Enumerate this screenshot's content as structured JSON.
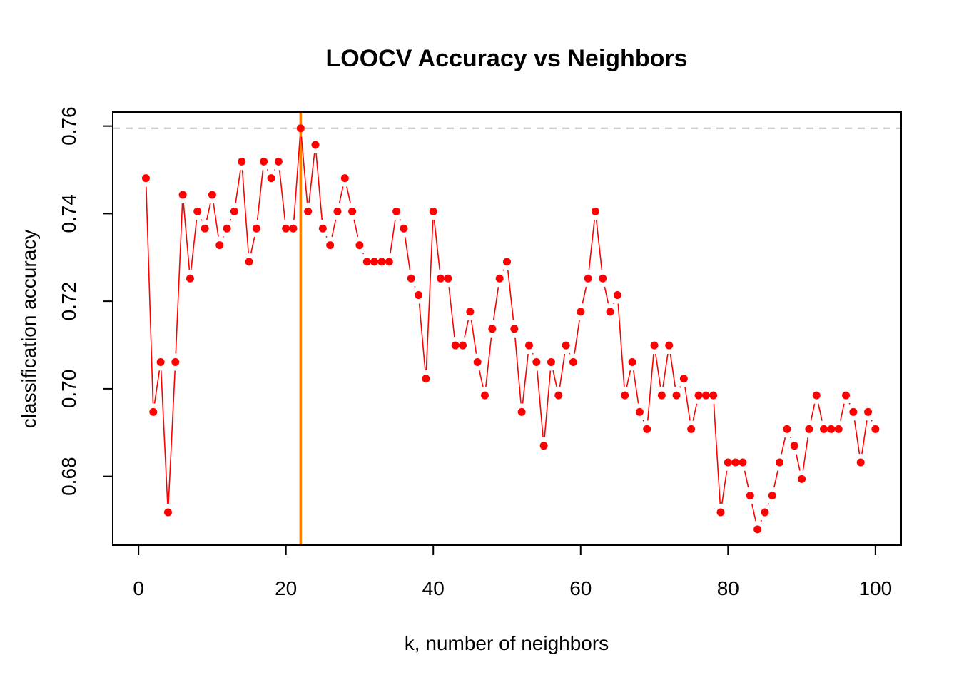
{
  "chart_data": {
    "type": "line",
    "title": "LOOCV Accuracy vs Neighbors",
    "xlabel": "k, number of neighbors",
    "ylabel": "classification accuracy",
    "xlim": [
      -3.5,
      103.5
    ],
    "ylim": [
      0.6643,
      0.7632
    ],
    "xticks": [
      0,
      20,
      40,
      60,
      80,
      100
    ],
    "xtick_labels": [
      "0",
      "20",
      "40",
      "60",
      "80",
      "100"
    ],
    "yticks": [
      0.68,
      0.7,
      0.72,
      0.74,
      0.76
    ],
    "ytick_labels": [
      "0.68",
      "0.70",
      "0.72",
      "0.74",
      "0.76"
    ],
    "grid": false,
    "series": [
      {
        "color": "#ff0000",
        "x": [
          1,
          2,
          3,
          4,
          5,
          6,
          7,
          8,
          9,
          10,
          11,
          12,
          13,
          14,
          15,
          16,
          17,
          18,
          19,
          20,
          21,
          22,
          23,
          24,
          25,
          26,
          27,
          28,
          29,
          30,
          31,
          32,
          33,
          34,
          35,
          36,
          37,
          38,
          39,
          40,
          41,
          42,
          43,
          44,
          45,
          46,
          47,
          48,
          49,
          50,
          51,
          52,
          53,
          54,
          55,
          56,
          57,
          58,
          59,
          60,
          61,
          62,
          63,
          64,
          65,
          66,
          67,
          68,
          69,
          70,
          71,
          72,
          73,
          74,
          75,
          76,
          77,
          78,
          79,
          80,
          81,
          82,
          83,
          84,
          85,
          86,
          87,
          88,
          89,
          90,
          91,
          92,
          93,
          94,
          95,
          96,
          97,
          98,
          99,
          100
        ],
        "values": [
          0.7481,
          0.6947,
          0.7061,
          0.6718,
          0.7061,
          0.7443,
          0.7252,
          0.7405,
          0.7366,
          0.7443,
          0.7328,
          0.7366,
          0.7405,
          0.7519,
          0.729,
          0.7366,
          0.7519,
          0.7481,
          0.7519,
          0.7366,
          0.7366,
          0.7595,
          0.7405,
          0.7557,
          0.7366,
          0.7328,
          0.7405,
          0.7481,
          0.7405,
          0.7328,
          0.729,
          0.729,
          0.729,
          0.729,
          0.7405,
          0.7366,
          0.7252,
          0.7214,
          0.7023,
          0.7405,
          0.7252,
          0.7252,
          0.7099,
          0.7099,
          0.7176,
          0.7061,
          0.6985,
          0.7137,
          0.7252,
          0.729,
          0.7137,
          0.6947,
          0.7099,
          0.7061,
          0.687,
          0.7061,
          0.6985,
          0.7099,
          0.7061,
          0.7176,
          0.7252,
          0.7405,
          0.7252,
          0.7176,
          0.7214,
          0.6985,
          0.7061,
          0.6947,
          0.6908,
          0.7099,
          0.6985,
          0.7099,
          0.6985,
          0.7023,
          0.6908,
          0.6985,
          0.6985,
          0.6985,
          0.6718,
          0.6832,
          0.6832,
          0.6832,
          0.6756,
          0.6679,
          0.6718,
          0.6756,
          0.6832,
          0.6908,
          0.687,
          0.6794,
          0.6908,
          0.6985,
          0.6908,
          0.6908,
          0.6908,
          0.6985,
          0.6947,
          0.6832,
          0.6947,
          0.6908
        ]
      }
    ],
    "reference_lines": [
      {
        "orientation": "vertical",
        "value": 22,
        "color": "#ff7f00",
        "style": "solid"
      },
      {
        "orientation": "horizontal",
        "value": 0.7595,
        "color": "#bebebe",
        "style": "dashed"
      }
    ]
  }
}
